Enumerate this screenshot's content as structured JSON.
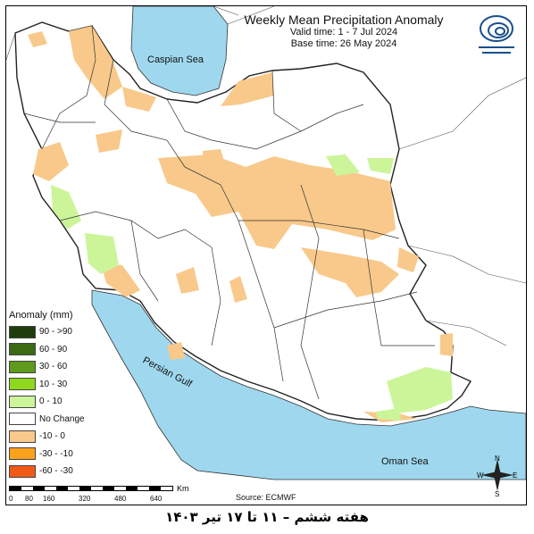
{
  "map": {
    "title": "Weekly Mean Precipitation Anomaly",
    "valid_time": "Valid time: 1 - 7 Jul 2024",
    "base_time": "Base time: 26 May 2024",
    "labels": {
      "caspian": "Caspian Sea",
      "gulf": "Persian Gulf",
      "oman": "Oman Sea"
    },
    "source": "Source: ECMWF",
    "footer": "هفته ششم – ۱۱ تا ۱۷ تیر ۱۴۰۳"
  },
  "legend": {
    "title": "Anomaly (mm)",
    "items": [
      {
        "label": "90 - >90",
        "color": "#1f3d0c"
      },
      {
        "label": "60 - 90",
        "color": "#3a6b12"
      },
      {
        "label": "30 - 60",
        "color": "#5e9a1b"
      },
      {
        "label": "10 - 30",
        "color": "#8fd81e"
      },
      {
        "label": "0 - 10",
        "color": "#ccf59a"
      },
      {
        "label": "No Change",
        "color": "#ffffff"
      },
      {
        "label": "-10 - 0",
        "color": "#f8c98a"
      },
      {
        "label": "-30 - -10",
        "color": "#fba21c"
      },
      {
        "label": "-60 - -30",
        "color": "#f05a14"
      }
    ]
  },
  "scale": {
    "unit": "Km",
    "ticks": [
      "0",
      "80",
      "160",
      "320",
      "480",
      "640"
    ]
  },
  "compass": {
    "n": "N",
    "s": "S",
    "e": "E",
    "w": "W"
  },
  "colors": {
    "sea": "#9fd8ee",
    "land": "#ffffff",
    "border": "#222222"
  }
}
